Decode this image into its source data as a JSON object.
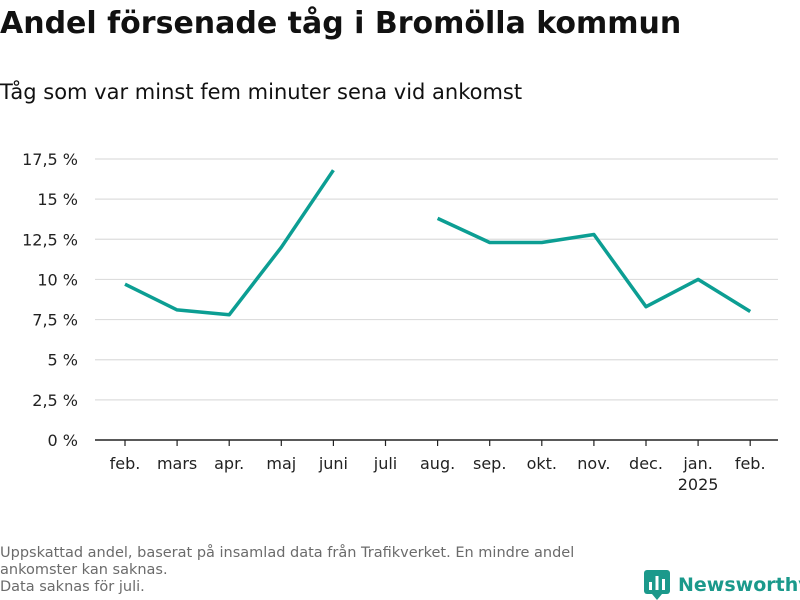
{
  "header": {
    "title": "Andel försenade tåg i Bromölla kommun",
    "subtitle": "Tåg som var minst fem minuter sena vid ankomst"
  },
  "footer": {
    "note_lines": [
      "Uppskattad andel, baserat på insamlad data från Trafikverket. En mindre andel",
      "ankomster kan saknas.",
      "Data saknas för juli."
    ],
    "brand": "Newsworthy",
    "brand_icon": "newsworthy-logo-icon"
  },
  "colors": {
    "line": "#0c9e93",
    "grid": "#dddddd",
    "axis": "#222222",
    "brand": "#1b998b"
  },
  "chart_data": {
    "type": "line",
    "title": "",
    "xlabel": "",
    "ylabel": "",
    "categories": [
      "feb.",
      "mars",
      "apr.",
      "maj",
      "juni",
      "juli",
      "aug.",
      "sep.",
      "okt.",
      "nov.",
      "dec.",
      "jan.",
      "feb."
    ],
    "category_sublabels": [
      "",
      "",
      "",
      "",
      "",
      "",
      "",
      "",
      "",
      "",
      "",
      "2025",
      ""
    ],
    "series": [
      {
        "values": [
          9.7,
          8.1,
          7.8,
          12.0,
          16.8,
          null,
          13.8,
          12.3,
          12.3,
          12.8,
          8.3,
          10.0,
          8.0
        ]
      }
    ],
    "ylim": [
      0,
      17.5
    ],
    "yticks": [
      0,
      2.5,
      5,
      7.5,
      10,
      12.5,
      15,
      17.5
    ],
    "ytick_labels": [
      "0 %",
      "2,5 %",
      "5 %",
      "7,5 %",
      "10 %",
      "12,5 %",
      "15 %",
      "17,5 %"
    ],
    "grid": true,
    "legend": "none"
  }
}
